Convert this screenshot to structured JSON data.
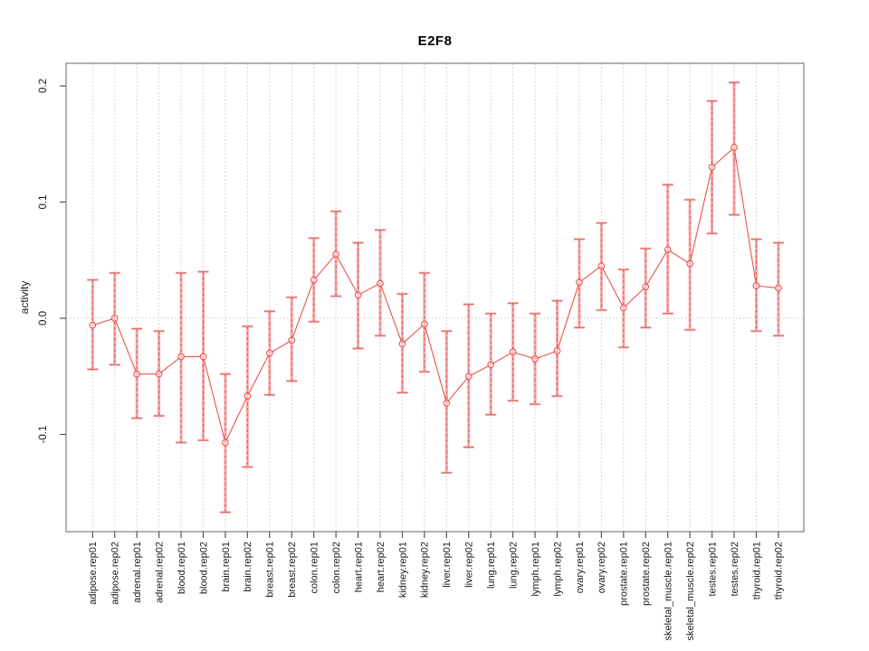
{
  "chart_data": {
    "type": "line",
    "title": "E2F8",
    "xlabel": "",
    "ylabel": "activity",
    "categories": [
      "adipose.rep01",
      "adipose.rep02",
      "adrenal.rep01",
      "adrenal.rep02",
      "blood.rep01",
      "blood.rep02",
      "brain.rep01",
      "brain.rep02",
      "breast.rep01",
      "breast.rep02",
      "colon.rep01",
      "colon.rep02",
      "heart.rep01",
      "heart.rep02",
      "kidney.rep01",
      "kidney.rep02",
      "liver.rep01",
      "liver.rep02",
      "lung.rep01",
      "lung.rep02",
      "lymph.rep01",
      "lymph.rep02",
      "ovary.rep01",
      "ovary.rep02",
      "prostate.rep01",
      "prostate.rep02",
      "skeletal_muscle.rep01",
      "skeletal_muscle.rep02",
      "testes.rep01",
      "testes.rep02",
      "thyroid.rep01",
      "thyroid.rep02"
    ],
    "series": [
      {
        "name": "activity",
        "values": [
          -0.006,
          0.0,
          -0.048,
          -0.048,
          -0.033,
          -0.033,
          -0.107,
          -0.067,
          -0.03,
          -0.019,
          0.033,
          0.055,
          0.02,
          0.03,
          -0.022,
          -0.005,
          -0.073,
          -0.05,
          -0.04,
          -0.029,
          -0.035,
          -0.028,
          0.031,
          0.045,
          0.009,
          0.027,
          0.059,
          0.047,
          0.13,
          0.147,
          0.028,
          0.026
        ],
        "error_low": [
          -0.044,
          -0.04,
          -0.086,
          -0.084,
          -0.107,
          -0.105,
          -0.167,
          -0.128,
          -0.066,
          -0.054,
          -0.003,
          0.019,
          -0.026,
          -0.015,
          -0.064,
          -0.046,
          -0.133,
          -0.111,
          -0.083,
          -0.071,
          -0.074,
          -0.067,
          -0.008,
          0.007,
          -0.025,
          -0.008,
          0.004,
          -0.01,
          0.073,
          0.089,
          -0.011,
          -0.015
        ],
        "error_high": [
          0.033,
          0.039,
          -0.009,
          -0.011,
          0.039,
          0.04,
          -0.048,
          -0.007,
          0.006,
          0.018,
          0.069,
          0.092,
          0.065,
          0.076,
          0.021,
          0.039,
          -0.011,
          0.012,
          0.004,
          0.013,
          0.004,
          0.015,
          0.068,
          0.082,
          0.042,
          0.06,
          0.115,
          0.102,
          0.187,
          0.203,
          0.068,
          0.065
        ]
      }
    ],
    "yticks_labels": [
      "0.2",
      "0.1",
      "0.0",
      "-0.1"
    ],
    "yticks_values": [
      0.2,
      0.1,
      0.0,
      -0.1
    ],
    "ylim": [
      -0.184,
      0.2195
    ],
    "grid": "vertical-dotted",
    "zero_line": true,
    "legend": "none",
    "colors": {
      "point_line": "#e9534f",
      "error_bar": "#f6a6a6",
      "error_dash": "#dd6060",
      "grid": "#c9c9c9",
      "frame": "#808080",
      "tick": "#555555",
      "text": "#1a1a1a"
    }
  }
}
